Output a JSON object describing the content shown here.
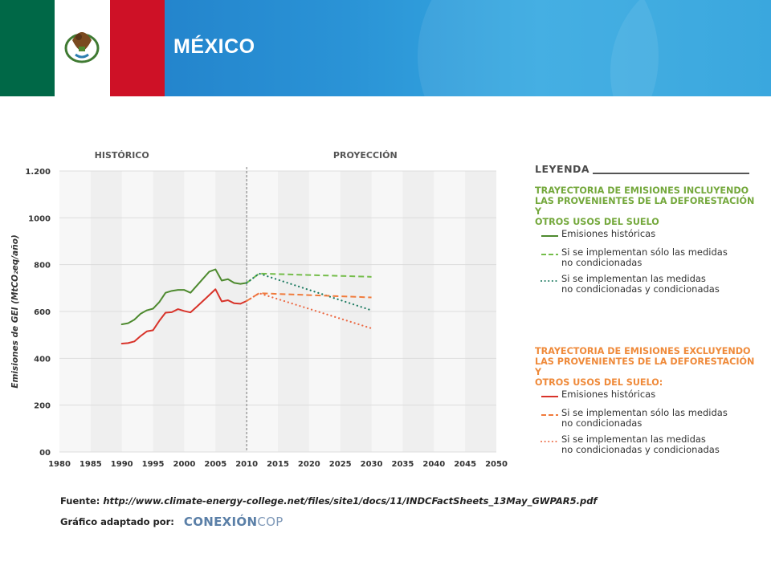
{
  "header": {
    "title": "MÉXICO",
    "flag_colors": {
      "green": "#006847",
      "white": "#ffffff",
      "red": "#ce1126"
    }
  },
  "chart_data": {
    "type": "line",
    "section_labels": [
      "HISTÓRICO",
      "PROYECCIÓN"
    ],
    "ylabel": "Emisiones de GEI (MtCO₂eq/año)",
    "xlabel": "",
    "xlim": [
      1980,
      2050
    ],
    "ylim": [
      0,
      1200
    ],
    "x_ticks": [
      "1980",
      "1985",
      "1990",
      "1995",
      "2000",
      "2005",
      "2010",
      "2015",
      "2020",
      "2025",
      "2030",
      "2035",
      "2040",
      "2045",
      "2050"
    ],
    "y_ticks": [
      {
        "value": 0,
        "label": "00"
      },
      {
        "value": 200,
        "label": "200"
      },
      {
        "value": 400,
        "label": "400"
      },
      {
        "value": 600,
        "label": "600"
      },
      {
        "value": 800,
        "label": "800"
      },
      {
        "value": 1000,
        "label": "1000"
      },
      {
        "value": 1200,
        "label": "1.200"
      }
    ],
    "divider_year": 2010,
    "series": [
      {
        "name": "Emisiones históricas",
        "color": "#4e8a2f",
        "style": "solid",
        "x": [
          1990,
          1991,
          1992,
          1993,
          1994,
          1995,
          1996,
          1997,
          1998,
          1999,
          2000,
          2001,
          2002,
          2003,
          2004,
          2005,
          2006,
          2007,
          2008,
          2009,
          2010
        ],
        "y": [
          545,
          550,
          565,
          590,
          605,
          612,
          640,
          680,
          688,
          692,
          692,
          680,
          710,
          740,
          770,
          780,
          732,
          738,
          722,
          718,
          722
        ]
      },
      {
        "name": "Si se implementan sólo las medidas no condicionadas",
        "color": "#74bd4a",
        "style": "dash",
        "x": [
          2010,
          2012,
          2030
        ],
        "y": [
          722,
          762,
          748
        ]
      },
      {
        "name": "Si se implementan las medidas no condicionadas y condicionadas",
        "color": "#1c7a60",
        "style": "dot",
        "x": [
          2010,
          2012,
          2030
        ],
        "y": [
          722,
          762,
          605
        ]
      },
      {
        "name": "Emisiones históricas",
        "color": "#d8332a",
        "style": "solid",
        "x": [
          1990,
          1991,
          1992,
          1993,
          1994,
          1995,
          1996,
          1997,
          1998,
          1999,
          2000,
          2001,
          2002,
          2003,
          2004,
          2005,
          2006,
          2007,
          2008,
          2009,
          2010
        ],
        "y": [
          463,
          465,
          472,
          495,
          515,
          520,
          560,
          595,
          597,
          610,
          602,
          596,
          620,
          645,
          670,
          695,
          643,
          648,
          635,
          633,
          645
        ]
      },
      {
        "name": "Si se implementan sólo las medidas no condicionadas",
        "color": "#f07b3c",
        "style": "dash",
        "x": [
          2010,
          2012,
          2030
        ],
        "y": [
          645,
          678,
          660
        ]
      },
      {
        "name": "Si se implementan las medidas no condicionadas y condicionadas",
        "color": "#ec6a44",
        "style": "dot",
        "x": [
          2010,
          2012,
          2030
        ],
        "y": [
          645,
          678,
          528
        ]
      }
    ]
  },
  "legend": {
    "title": "LEYENDA",
    "sections": [
      {
        "heading": [
          "TRAYECTORIA DE EMISIONES INCLUYENDO",
          "LAS PROVENIENTES DE LA DEFORESTACIÓN Y",
          "OTROS USOS DEL SUELO"
        ],
        "color": "#74a83c",
        "items": [
          {
            "lines": [
              "Emisiones históricas"
            ],
            "color": "#4e8a2f",
            "style": "solid"
          },
          {
            "lines": [
              "Si se implementan sólo las medidas",
              "no condicionadas"
            ],
            "color": "#74bd4a",
            "style": "dash"
          },
          {
            "lines": [
              "Si se implementan las medidas",
              "no condicionadas y condicionadas"
            ],
            "color": "#1c7a60",
            "style": "dot"
          }
        ]
      },
      {
        "heading": [
          "TRAYECTORIA DE EMISIONES EXCLUYENDO",
          "LAS PROVENIENTES DE LA DEFORESTACIÓN Y",
          "OTROS USOS DEL SUELO:"
        ],
        "color": "#ef8a3a",
        "items": [
          {
            "lines": [
              "Emisiones históricas"
            ],
            "color": "#d8332a",
            "style": "solid"
          },
          {
            "lines": [
              "Si se implementan sólo las medidas",
              "no condicionadas"
            ],
            "color": "#f07b3c",
            "style": "dash"
          },
          {
            "lines": [
              "Si se implementan las medidas",
              "no condicionadas y condicionadas"
            ],
            "color": "#ec6a44",
            "style": "dot"
          }
        ]
      }
    ]
  },
  "footer": {
    "source_label": "Fuente:",
    "source_url": "http://www.climate-energy-college.net/files/site1/docs/11/INDCFactSheets_13May_GWPAR5.pdf",
    "adapted_label": "Gráfico adaptado por:",
    "logo_part1": "CONEXIÓN",
    "logo_part2": "COP"
  }
}
